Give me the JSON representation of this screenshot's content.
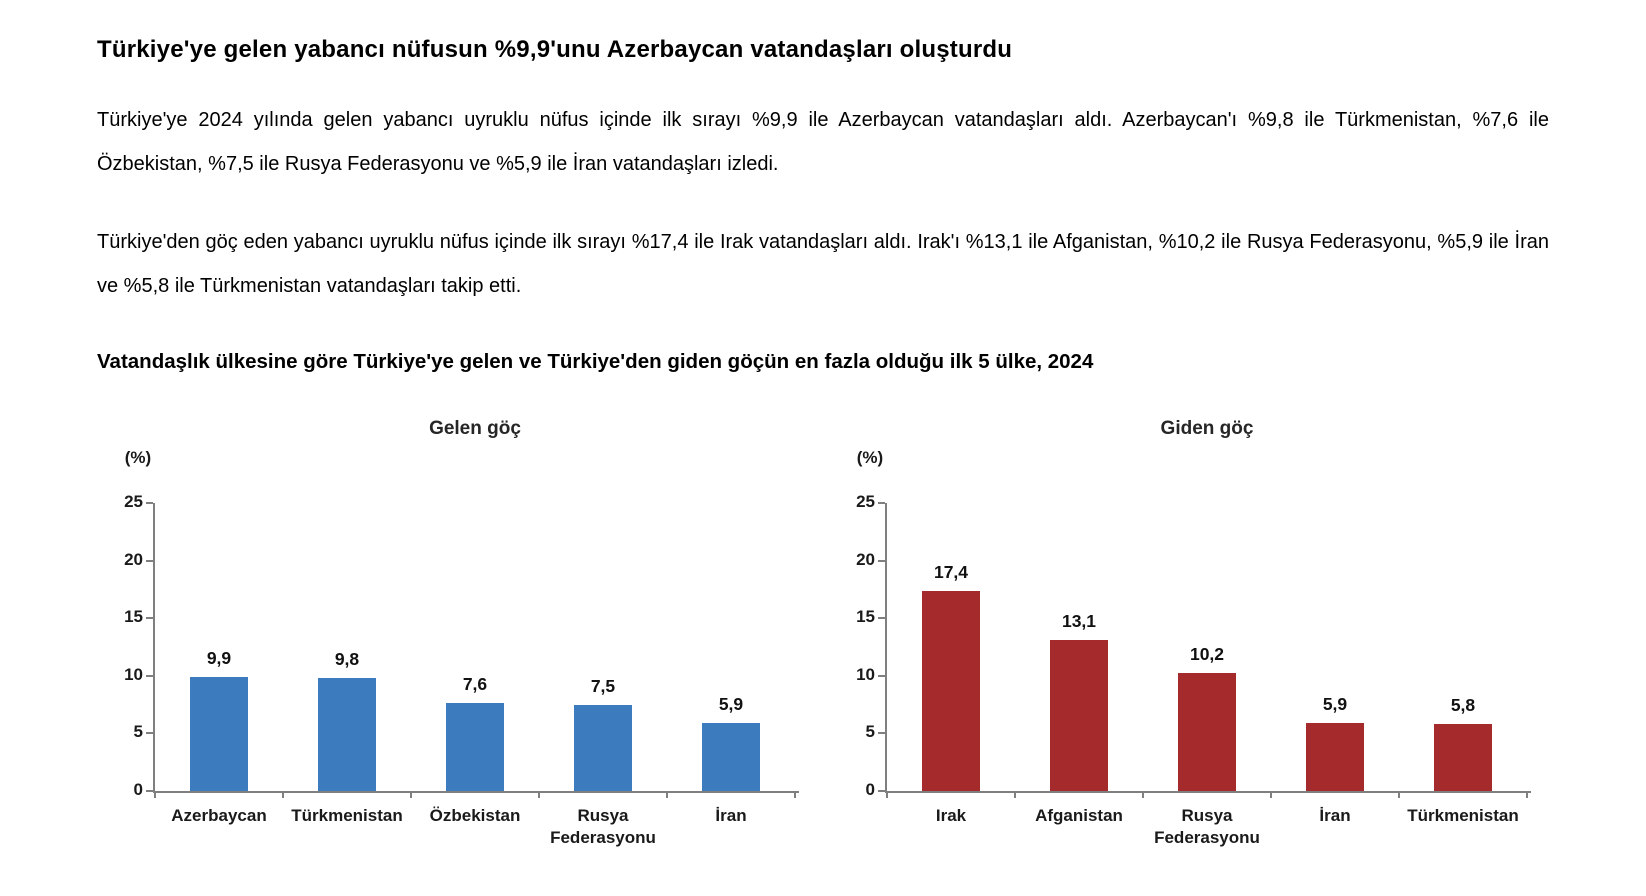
{
  "page": {
    "title": "Türkiye'ye gelen yabancı nüfusun %9,9'unu Azerbaycan vatandaşları oluşturdu",
    "paragraph1": "Türkiye'ye 2024 yılında gelen yabancı uyruklu nüfus içinde ilk sırayı %9,9 ile Azerbaycan vatandaşları aldı. Azerbaycan'ı %9,8 ile Türkmenistan, %7,6 ile Özbekistan, %7,5 ile Rusya Federasyonu ve %5,9 ile İran vatandaşları izledi.",
    "paragraph2": "Türkiye'den göç eden yabancı uyruklu nüfus içinde ilk sırayı %17,4 ile Irak vatandaşları aldı. Irak'ı %13,1 ile Afganistan, %10,2 ile Rusya Federasyonu, %5,9 ile İran ve %5,8 ile Türkmenistan vatandaşları takip etti.",
    "figure_title": "Vatandaşlık ülkesine göre Türkiye'ye gelen ve Türkiye'den giden göçün en fazla olduğu ilk 5 ülke, 2024"
  },
  "chart_data": [
    {
      "type": "bar",
      "title": "Gelen göç",
      "ylabel": "(%)",
      "categories": [
        "Azerbaycan",
        "Türkmenistan",
        "Özbekistan",
        "Rusya Federasyonu",
        "İran"
      ],
      "values": [
        9.9,
        9.8,
        7.6,
        7.5,
        5.9
      ],
      "value_labels": [
        "9,9",
        "9,8",
        "7,6",
        "7,5",
        "5,9"
      ],
      "ylim": [
        0,
        25
      ],
      "ytick_step": 5,
      "ytick_labels": [
        "0",
        "5",
        "10",
        "15",
        "20",
        "25"
      ],
      "bar_color": "#3C7BBE",
      "axis_color": "#7F7F7F",
      "grid": false,
      "legend": "none"
    },
    {
      "type": "bar",
      "title": "Giden göç",
      "ylabel": "(%)",
      "categories": [
        "Irak",
        "Afganistan",
        "Rusya Federasyonu",
        "İran",
        "Türkmenistan"
      ],
      "values": [
        17.4,
        13.1,
        10.2,
        5.9,
        5.8
      ],
      "value_labels": [
        "17,4",
        "13,1",
        "10,2",
        "5,9",
        "5,8"
      ],
      "ylim": [
        0,
        25
      ],
      "ytick_step": 5,
      "ytick_labels": [
        "0",
        "5",
        "10",
        "15",
        "20",
        "25"
      ],
      "bar_color": "#A52A2B",
      "axis_color": "#7F7F7F",
      "grid": false,
      "legend": "none"
    }
  ]
}
